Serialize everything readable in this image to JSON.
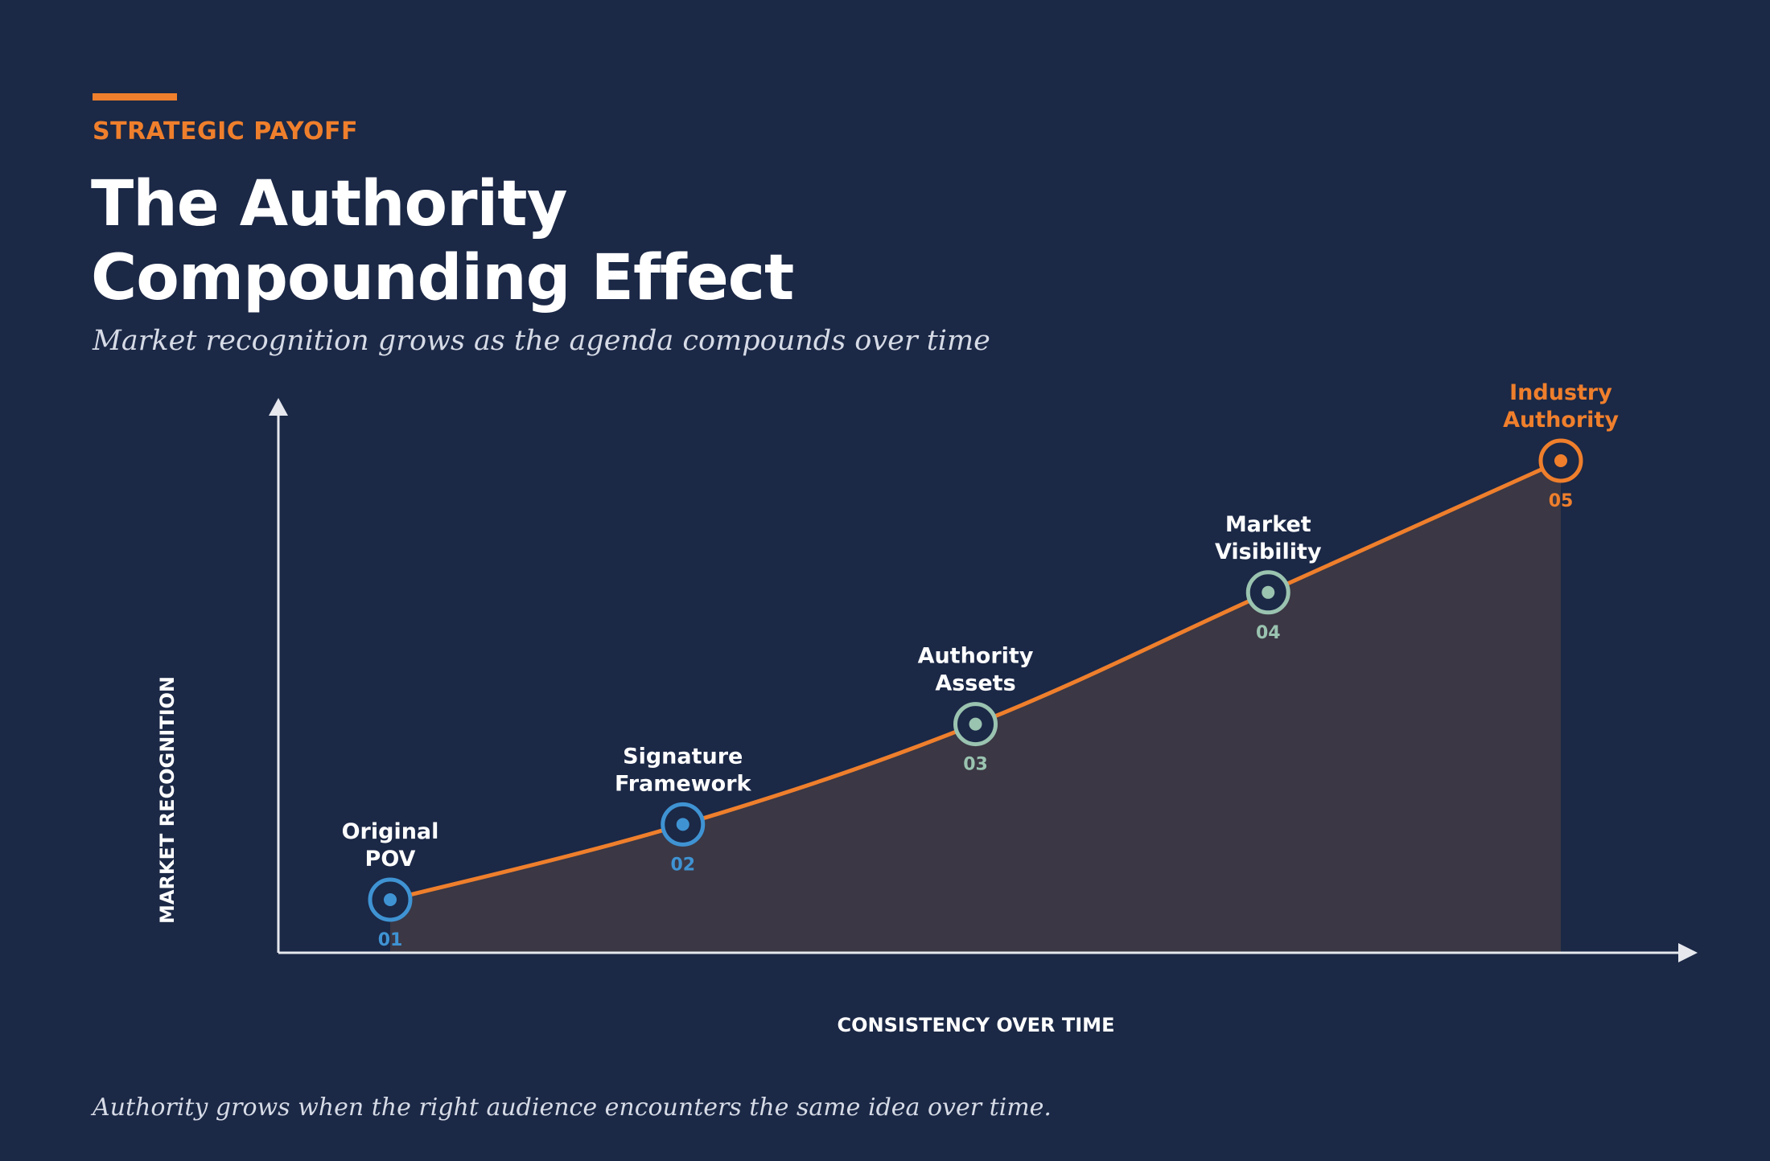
{
  "header": {
    "eyebrow": "STRATEGIC PAYOFF",
    "title_line1": "The Authority",
    "title_line2": "Compounding Effect",
    "subtitle": "Market recognition grows as the agenda compounds over time"
  },
  "footnote": "Authority grows when the right audience encounters the same idea over time.",
  "colors": {
    "background": "#1b2846",
    "accent": "#ef7f2c",
    "blue": "#3f93d3",
    "sage": "#9ac3b0",
    "area_fill": "#3b3744",
    "axis": "#e6e8ee"
  },
  "chart_data": {
    "type": "area",
    "xlabel": "CONSISTENCY OVER TIME",
    "ylabel": "MARKET RECOGNITION",
    "grid": false,
    "points": [
      {
        "number": "01",
        "label_lines": [
          "Original",
          "POV"
        ],
        "x": 1,
        "y": 1.0,
        "color": "#3f93d3"
      },
      {
        "number": "02",
        "label_lines": [
          "Signature",
          "Framework"
        ],
        "x": 2,
        "y": 2.2,
        "color": "#3f93d3"
      },
      {
        "number": "03",
        "label_lines": [
          "Authority",
          "Assets"
        ],
        "x": 3,
        "y": 3.8,
        "color": "#9ac3b0"
      },
      {
        "number": "04",
        "label_lines": [
          "Market",
          "Visibility"
        ],
        "x": 4,
        "y": 5.9,
        "color": "#9ac3b0"
      },
      {
        "number": "05",
        "label_lines": [
          "Industry",
          "Authority"
        ],
        "x": 5,
        "y": 8.0,
        "color": "#ef7f2c"
      }
    ]
  }
}
